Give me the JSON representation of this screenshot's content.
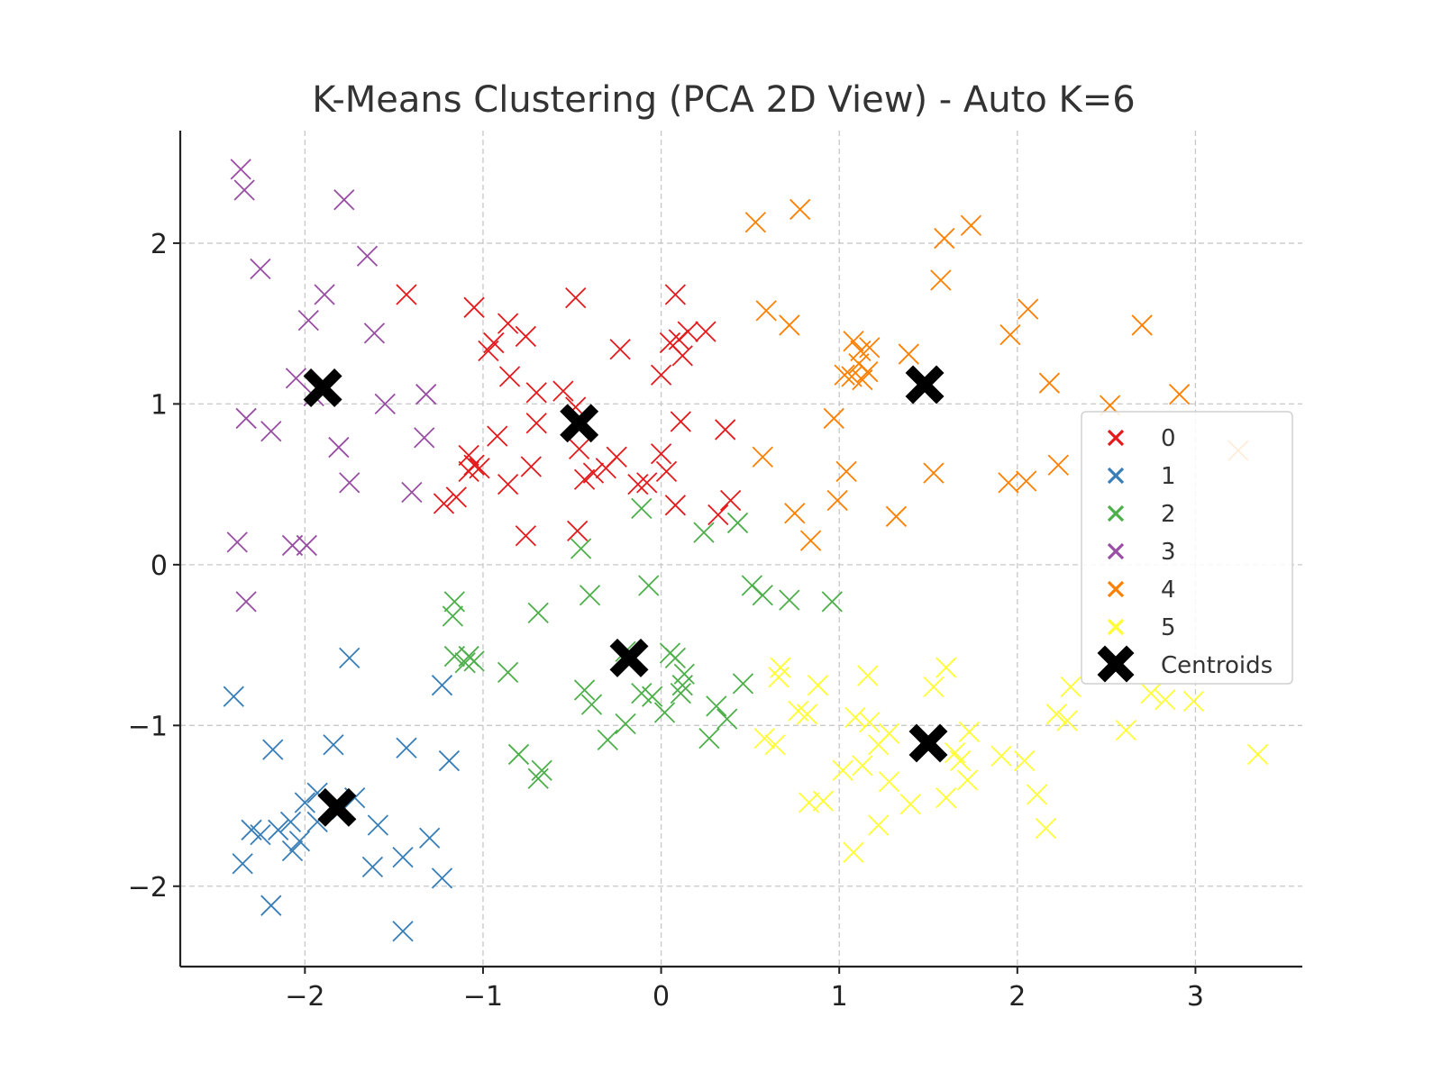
{
  "chart_data": {
    "type": "scatter",
    "title": "K-Means Clustering (PCA 2D View) - Auto K=6",
    "xlabel": "",
    "ylabel": "",
    "xlim": [
      -2.7,
      3.6
    ],
    "ylim": [
      -2.5,
      2.7
    ],
    "xticks": [
      -2,
      -1,
      0,
      1,
      2,
      3
    ],
    "yticks": [
      -2,
      -1,
      0,
      1,
      2
    ],
    "xtick_labels": [
      "−2",
      "−1",
      "0",
      "1",
      "2",
      "3"
    ],
    "ytick_labels": [
      "−2",
      "−1",
      "0",
      "1",
      "2"
    ],
    "grid": true,
    "legend_position": "right",
    "marker": "x",
    "series": [
      {
        "name": "0",
        "color": "#e41a1c",
        "points": [
          [
            -1.43,
            1.68
          ],
          [
            -1.05,
            1.6
          ],
          [
            -0.86,
            1.5
          ],
          [
            -0.76,
            1.42
          ],
          [
            -0.94,
            1.38
          ],
          [
            -0.97,
            1.33
          ],
          [
            -0.48,
            1.66
          ],
          [
            -0.23,
            1.34
          ],
          [
            0.08,
            1.68
          ],
          [
            0.1,
            1.4
          ],
          [
            0.15,
            1.45
          ],
          [
            0.25,
            1.45
          ],
          [
            0.05,
            1.38
          ],
          [
            0.12,
            1.3
          ],
          [
            0.0,
            1.18
          ],
          [
            -0.85,
            1.17
          ],
          [
            -0.7,
            1.07
          ],
          [
            -0.55,
            1.08
          ],
          [
            -0.48,
            0.98
          ],
          [
            -0.7,
            0.88
          ],
          [
            0.11,
            0.89
          ],
          [
            0.36,
            0.84
          ],
          [
            -0.92,
            0.8
          ],
          [
            -1.08,
            0.68
          ],
          [
            -1.05,
            0.62
          ],
          [
            -1.08,
            0.58
          ],
          [
            -1.02,
            0.6
          ],
          [
            -0.46,
            0.72
          ],
          [
            -0.73,
            0.61
          ],
          [
            -0.25,
            0.67
          ],
          [
            -0.31,
            0.6
          ],
          [
            -0.38,
            0.57
          ],
          [
            -0.43,
            0.53
          ],
          [
            0.0,
            0.69
          ],
          [
            0.03,
            0.58
          ],
          [
            -0.13,
            0.5
          ],
          [
            -0.08,
            0.51
          ],
          [
            -0.86,
            0.5
          ],
          [
            -1.15,
            0.42
          ],
          [
            -1.22,
            0.38
          ],
          [
            0.08,
            0.37
          ],
          [
            0.32,
            0.31
          ],
          [
            0.39,
            0.4
          ],
          [
            -0.47,
            0.21
          ],
          [
            -0.76,
            0.18
          ]
        ]
      },
      {
        "name": "1",
        "color": "#377eb8",
        "points": [
          [
            -2.4,
            -0.82
          ],
          [
            -1.75,
            -0.58
          ],
          [
            -1.23,
            -0.75
          ],
          [
            -2.18,
            -1.15
          ],
          [
            -1.84,
            -1.12
          ],
          [
            -1.43,
            -1.14
          ],
          [
            -1.19,
            -1.22
          ],
          [
            -1.93,
            -1.42
          ],
          [
            -2.0,
            -1.48
          ],
          [
            -1.72,
            -1.45
          ],
          [
            -1.79,
            -1.52
          ],
          [
            -2.08,
            -1.6
          ],
          [
            -2.15,
            -1.65
          ],
          [
            -2.25,
            -1.68
          ],
          [
            -2.3,
            -1.65
          ],
          [
            -1.93,
            -1.6
          ],
          [
            -1.59,
            -1.62
          ],
          [
            -2.03,
            -1.72
          ],
          [
            -2.07,
            -1.78
          ],
          [
            -1.3,
            -1.7
          ],
          [
            -2.35,
            -1.86
          ],
          [
            -1.62,
            -1.88
          ],
          [
            -1.45,
            -1.82
          ],
          [
            -1.23,
            -1.95
          ],
          [
            -2.19,
            -2.12
          ],
          [
            -1.45,
            -2.28
          ]
        ]
      },
      {
        "name": "2",
        "color": "#4daf4a",
        "points": [
          [
            -0.11,
            0.35
          ],
          [
            0.24,
            0.2
          ],
          [
            0.43,
            0.26
          ],
          [
            -0.45,
            0.1
          ],
          [
            -0.07,
            -0.13
          ],
          [
            -0.4,
            -0.19
          ],
          [
            -1.16,
            -0.23
          ],
          [
            -1.17,
            -0.32
          ],
          [
            -0.69,
            -0.3
          ],
          [
            0.51,
            -0.13
          ],
          [
            0.57,
            -0.19
          ],
          [
            0.72,
            -0.22
          ],
          [
            0.96,
            -0.23
          ],
          [
            -1.16,
            -0.57
          ],
          [
            -1.08,
            -0.57
          ],
          [
            -1.05,
            -0.6
          ],
          [
            -1.1,
            -0.61
          ],
          [
            -0.86,
            -0.67
          ],
          [
            -0.2,
            -0.54
          ],
          [
            0.05,
            -0.55
          ],
          [
            0.08,
            -0.58
          ],
          [
            0.13,
            -0.68
          ],
          [
            0.12,
            -0.75
          ],
          [
            0.46,
            -0.74
          ],
          [
            -0.43,
            -0.78
          ],
          [
            -0.11,
            -0.8
          ],
          [
            -0.05,
            -0.82
          ],
          [
            0.11,
            -0.8
          ],
          [
            -0.39,
            -0.87
          ],
          [
            0.02,
            -0.92
          ],
          [
            0.31,
            -0.88
          ],
          [
            0.37,
            -0.96
          ],
          [
            -0.2,
            -0.99
          ],
          [
            -0.3,
            -1.09
          ],
          [
            0.27,
            -1.08
          ],
          [
            -0.8,
            -1.18
          ],
          [
            -0.67,
            -1.28
          ],
          [
            -0.69,
            -1.33
          ]
        ]
      },
      {
        "name": "3",
        "color": "#984ea3",
        "points": [
          [
            -2.36,
            2.46
          ],
          [
            -2.34,
            2.33
          ],
          [
            -1.78,
            2.27
          ],
          [
            -1.65,
            1.92
          ],
          [
            -2.25,
            1.84
          ],
          [
            -1.89,
            1.68
          ],
          [
            -1.98,
            1.52
          ],
          [
            -1.61,
            1.44
          ],
          [
            -2.05,
            1.16
          ],
          [
            -1.95,
            1.05
          ],
          [
            -1.55,
            1.0
          ],
          [
            -1.32,
            1.06
          ],
          [
            -2.33,
            0.91
          ],
          [
            -2.19,
            0.83
          ],
          [
            -1.33,
            0.79
          ],
          [
            -1.81,
            0.73
          ],
          [
            -1.75,
            0.51
          ],
          [
            -1.4,
            0.45
          ],
          [
            -2.38,
            0.14
          ],
          [
            -2.07,
            0.12
          ],
          [
            -1.99,
            0.12
          ],
          [
            -2.33,
            -0.23
          ]
        ]
      },
      {
        "name": "4",
        "color": "#ff7f00",
        "points": [
          [
            0.53,
            2.13
          ],
          [
            0.78,
            2.21
          ],
          [
            1.74,
            2.11
          ],
          [
            1.59,
            2.03
          ],
          [
            1.57,
            1.77
          ],
          [
            0.59,
            1.58
          ],
          [
            0.72,
            1.49
          ],
          [
            2.06,
            1.59
          ],
          [
            1.96,
            1.43
          ],
          [
            1.08,
            1.39
          ],
          [
            1.12,
            1.33
          ],
          [
            1.17,
            1.35
          ],
          [
            1.11,
            1.25
          ],
          [
            1.39,
            1.31
          ],
          [
            1.03,
            1.18
          ],
          [
            1.07,
            1.17
          ],
          [
            1.13,
            1.15
          ],
          [
            1.16,
            1.2
          ],
          [
            2.18,
            1.13
          ],
          [
            2.7,
            1.49
          ],
          [
            2.91,
            1.06
          ],
          [
            2.52,
            0.99
          ],
          [
            0.97,
            0.91
          ],
          [
            0.57,
            0.67
          ],
          [
            1.04,
            0.58
          ],
          [
            1.53,
            0.57
          ],
          [
            2.23,
            0.62
          ],
          [
            1.95,
            0.51
          ],
          [
            2.05,
            0.52
          ],
          [
            0.75,
            0.32
          ],
          [
            0.99,
            0.4
          ],
          [
            1.32,
            0.3
          ],
          [
            0.84,
            0.15
          ],
          [
            3.24,
            0.71
          ]
        ]
      },
      {
        "name": "5",
        "color": "#ffff33",
        "points": [
          [
            0.67,
            -0.64
          ],
          [
            0.66,
            -0.7
          ],
          [
            1.16,
            -0.69
          ],
          [
            1.6,
            -0.64
          ],
          [
            0.88,
            -0.75
          ],
          [
            1.53,
            -0.76
          ],
          [
            2.3,
            -0.76
          ],
          [
            2.75,
            -0.8
          ],
          [
            2.83,
            -0.84
          ],
          [
            2.99,
            -0.85
          ],
          [
            0.77,
            -0.91
          ],
          [
            0.82,
            -0.93
          ],
          [
            1.09,
            -0.95
          ],
          [
            1.17,
            -0.98
          ],
          [
            1.28,
            -1.05
          ],
          [
            1.73,
            -1.04
          ],
          [
            2.22,
            -0.93
          ],
          [
            2.28,
            -0.97
          ],
          [
            2.61,
            -1.03
          ],
          [
            0.58,
            -1.08
          ],
          [
            0.64,
            -1.12
          ],
          [
            1.22,
            -1.12
          ],
          [
            1.65,
            -1.17
          ],
          [
            1.68,
            -1.22
          ],
          [
            1.91,
            -1.19
          ],
          [
            2.04,
            -1.22
          ],
          [
            3.35,
            -1.18
          ],
          [
            1.02,
            -1.28
          ],
          [
            1.13,
            -1.25
          ],
          [
            1.28,
            -1.35
          ],
          [
            1.72,
            -1.34
          ],
          [
            0.83,
            -1.48
          ],
          [
            0.91,
            -1.47
          ],
          [
            1.4,
            -1.49
          ],
          [
            1.6,
            -1.45
          ],
          [
            2.11,
            -1.43
          ],
          [
            1.22,
            -1.62
          ],
          [
            2.16,
            -1.64
          ],
          [
            1.08,
            -1.79
          ]
        ]
      }
    ],
    "centroids": [
      [
        -1.9,
        1.1
      ],
      [
        -0.46,
        0.88
      ],
      [
        1.48,
        1.12
      ],
      [
        -0.18,
        -0.58
      ],
      [
        -1.82,
        -1.51
      ],
      [
        1.5,
        -1.11
      ]
    ],
    "legend": {
      "entries": [
        "0",
        "1",
        "2",
        "3",
        "4",
        "5"
      ],
      "centroids_label": "Centroids"
    }
  }
}
